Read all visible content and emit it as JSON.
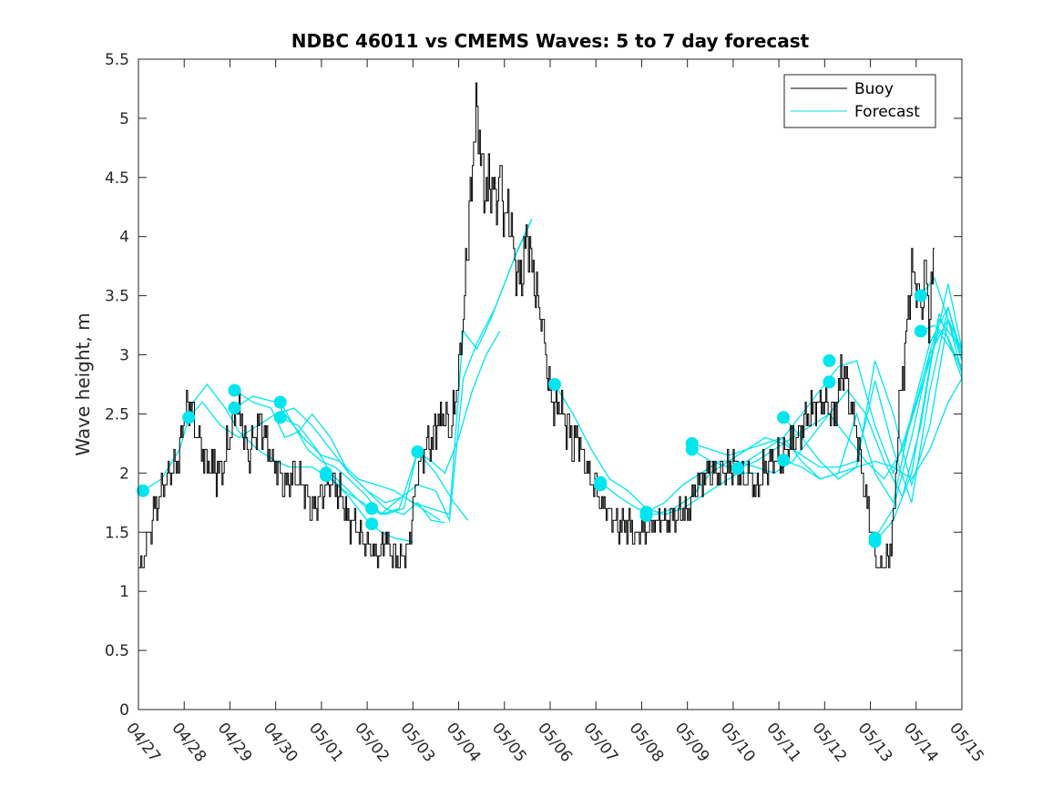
{
  "chart_data": {
    "type": "line",
    "title": "NDBC 46011 vs CMEMS Waves: 5 to 7 day forecast",
    "xlabel": "",
    "ylabel": "Wave height, m",
    "x_unit": "day",
    "xlim": [
      0,
      18
    ],
    "ylim": [
      0,
      5.5
    ],
    "yticks": [
      0,
      0.5,
      1,
      1.5,
      2,
      2.5,
      3,
      3.5,
      4,
      4.5,
      5,
      5.5
    ],
    "yticklabels": [
      "0",
      "0.5",
      "1",
      "1.5",
      "2",
      "2.5",
      "3",
      "3.5",
      "4",
      "4.5",
      "5",
      "5.5"
    ],
    "xtick_labels": [
      "04/27",
      "04/28",
      "04/29",
      "04/30",
      "05/01",
      "05/02",
      "05/03",
      "05/04",
      "05/05",
      "05/06",
      "05/07",
      "05/08",
      "05/09",
      "05/10",
      "05/11",
      "05/12",
      "05/13",
      "05/14",
      "05/15"
    ],
    "grid": false,
    "legend_position": "top-right",
    "legend": [
      "Buoy",
      "Forecast"
    ],
    "colors": {
      "buoy": "#000000",
      "forecast": "#00e5ee",
      "marker": "#00e5ee"
    },
    "buoy": {
      "name": "Buoy",
      "x": [
        0,
        0.1,
        0.3,
        0.5,
        0.7,
        0.8,
        0.9,
        1.0,
        1.1,
        1.2,
        1.3,
        1.5,
        1.7,
        1.8,
        2.0,
        2.1,
        2.3,
        2.4,
        2.5,
        2.7,
        2.9,
        3.1,
        3.2,
        3.4,
        3.6,
        3.8,
        3.9,
        4.0,
        4.2,
        4.4,
        4.6,
        4.8,
        5.0,
        5.2,
        5.3,
        5.4,
        5.6,
        5.7,
        5.9,
        6.0,
        6.1,
        6.3,
        6.4,
        6.5,
        6.7,
        6.8,
        6.9,
        7.0,
        7.1,
        7.15,
        7.2,
        7.25,
        7.3,
        7.4,
        7.5,
        7.6,
        7.7,
        7.8,
        7.9,
        8.0,
        8.1,
        8.2,
        8.3,
        8.4,
        8.5,
        8.6,
        8.7,
        8.8,
        8.9,
        9.0,
        9.1,
        9.2,
        9.4,
        9.5,
        9.6,
        9.8,
        10.0,
        10.2,
        10.4,
        10.5,
        10.7,
        10.9,
        11.0,
        11.2,
        11.5,
        11.8,
        12.0,
        12.2,
        12.5,
        12.8,
        13.0,
        13.2,
        13.5,
        13.8,
        14.0,
        14.2,
        14.4,
        14.6,
        14.8,
        15.0,
        15.2,
        15.4,
        15.5,
        15.7,
        15.9,
        16.1,
        16.2,
        16.4,
        16.5,
        16.6,
        16.8,
        16.9,
        17.0,
        17.1,
        17.2,
        17.3,
        17.4
      ],
      "y": [
        1.15,
        1.3,
        1.6,
        1.9,
        2.0,
        2.1,
        2.2,
        2.5,
        2.6,
        2.5,
        2.3,
        2.1,
        2.0,
        2.0,
        2.3,
        2.6,
        2.35,
        2.1,
        2.3,
        2.4,
        2.1,
        2.0,
        1.9,
        2.0,
        1.85,
        1.65,
        1.7,
        1.85,
        1.9,
        1.85,
        1.6,
        1.5,
        1.4,
        1.3,
        1.35,
        1.4,
        1.3,
        1.25,
        1.4,
        1.7,
        2.0,
        2.3,
        2.2,
        2.4,
        2.5,
        2.3,
        2.6,
        2.9,
        3.3,
        3.8,
        4.0,
        4.3,
        4.7,
        5.1,
        4.6,
        4.3,
        4.5,
        4.3,
        4.6,
        4.1,
        4.2,
        3.9,
        3.6,
        3.7,
        4.0,
        3.8,
        3.5,
        3.3,
        3.0,
        2.7,
        2.5,
        2.55,
        2.4,
        2.2,
        2.3,
        2.0,
        1.85,
        1.7,
        1.6,
        1.55,
        1.55,
        1.5,
        1.5,
        1.55,
        1.6,
        1.65,
        1.7,
        1.9,
        2.0,
        2.0,
        2.05,
        2.0,
        1.9,
        2.1,
        2.1,
        2.2,
        2.3,
        2.5,
        2.55,
        2.6,
        2.5,
        2.9,
        2.7,
        2.3,
        1.8,
        1.3,
        1.2,
        1.3,
        1.6,
        2.4,
        3.3,
        3.7,
        3.6,
        3.4,
        3.7,
        3.3,
        3.9
      ]
    },
    "forecast_series": [
      {
        "x": [
          0.1,
          0.5,
          0.9,
          1.2,
          1.5,
          1.9,
          2.2,
          2.6,
          3.0,
          3.3,
          3.8,
          4.2,
          4.6,
          5.0,
          5.3,
          5.6,
          6.0
        ],
        "y": [
          1.85,
          1.95,
          2.2,
          2.6,
          2.75,
          2.55,
          2.35,
          2.2,
          2.1,
          2.05,
          2.05,
          1.95,
          1.8,
          1.6,
          1.5,
          1.45,
          1.42
        ]
      },
      {
        "x": [
          1.1,
          1.4,
          1.8,
          2.2,
          2.6,
          3.0,
          3.4,
          3.8,
          4.2,
          4.6,
          5.0,
          5.4,
          5.8,
          6.2,
          6.6
        ],
        "y": [
          2.47,
          2.6,
          2.4,
          2.3,
          2.4,
          2.5,
          2.55,
          2.4,
          2.2,
          2.0,
          1.85,
          1.75,
          1.8,
          1.7,
          1.6
        ]
      },
      {
        "x": [
          2.1,
          2.5,
          2.9,
          3.2,
          3.5,
          3.8,
          4.2,
          4.6,
          5.0,
          5.4,
          5.8,
          6.1,
          6.4,
          6.7
        ],
        "y": [
          2.7,
          2.6,
          2.55,
          2.3,
          2.35,
          2.5,
          2.3,
          2.0,
          1.85,
          1.7,
          1.65,
          1.75,
          1.6,
          1.58
        ]
      },
      {
        "x": [
          2.1,
          2.5,
          3.0,
          3.3,
          3.6,
          4.0,
          4.4,
          4.8,
          5.2,
          5.6,
          6.0,
          6.4,
          6.8,
          7.1,
          7.4,
          7.7,
          8.0,
          8.3,
          8.6
        ],
        "y": [
          2.55,
          2.65,
          2.6,
          2.45,
          2.3,
          2.15,
          2.1,
          1.95,
          1.9,
          1.85,
          1.75,
          1.7,
          1.65,
          3.2,
          3.05,
          3.3,
          3.6,
          3.9,
          4.15
        ]
      },
      {
        "x": [
          3.1,
          3.4,
          3.7,
          4.0,
          4.3,
          4.6,
          5.0,
          5.3,
          5.6,
          6.1,
          6.5,
          6.8,
          7.1,
          7.4,
          7.8,
          8.2,
          8.6
        ],
        "y": [
          2.6,
          2.4,
          2.2,
          2.1,
          2.05,
          1.95,
          1.8,
          1.65,
          1.75,
          1.9,
          1.85,
          1.6,
          2.8,
          3.1,
          3.4,
          3.8,
          4.15
        ]
      },
      {
        "x": [
          3.1,
          3.5,
          3.9,
          4.2,
          4.6,
          5.0,
          5.4,
          5.8,
          6.1,
          6.4,
          6.7,
          7.0,
          7.3,
          7.6,
          7.9
        ],
        "y": [
          2.47,
          2.4,
          2.2,
          2.0,
          1.85,
          1.7,
          1.65,
          1.7,
          2.18,
          2.1,
          2.0,
          2.3,
          2.7,
          3.0,
          3.2
        ]
      },
      {
        "x": [
          4.1,
          4.5,
          4.9,
          5.3,
          5.7,
          6.1,
          6.5,
          6.9,
          7.2
        ],
        "y": [
          2.0,
          1.85,
          1.75,
          1.65,
          1.7,
          2.18,
          2.0,
          1.75,
          1.6
        ]
      },
      {
        "x": [
          9.1,
          9.5,
          9.9,
          10.3,
          10.7,
          11.1,
          11.5,
          11.9,
          12.3,
          12.7,
          13.1,
          13.5
        ],
        "y": [
          2.75,
          2.5,
          2.2,
          1.95,
          1.85,
          1.7,
          1.65,
          1.7,
          1.8,
          1.9,
          2.0,
          2.0
        ]
      },
      {
        "x": [
          10.1,
          10.5,
          10.9,
          11.3,
          11.7,
          12.1,
          12.5,
          12.9,
          13.3,
          13.7,
          14.1,
          14.5,
          14.9,
          15.3,
          15.7,
          16.1,
          16.5,
          17.0,
          17.5,
          18.0
        ],
        "y": [
          1.92,
          1.8,
          1.7,
          1.65,
          1.7,
          1.8,
          2.0,
          2.1,
          2.2,
          2.25,
          2.3,
          2.5,
          2.7,
          2.9,
          2.95,
          2.4,
          2.0,
          2.6,
          3.3,
          3.05
        ]
      },
      {
        "x": [
          11.1,
          11.5,
          11.9,
          12.3,
          12.7,
          13.1,
          13.5,
          13.9,
          14.3,
          14.7,
          15.1,
          15.5,
          15.9,
          16.3,
          16.7,
          17.1,
          17.5,
          18.0
        ],
        "y": [
          1.67,
          1.75,
          1.9,
          2.0,
          2.1,
          2.1,
          2.05,
          2.0,
          2.1,
          2.3,
          2.5,
          2.7,
          2.5,
          2.1,
          1.8,
          2.4,
          3.35,
          2.8
        ]
      },
      {
        "x": [
          12.1,
          12.5,
          12.9,
          13.3,
          13.7,
          14.1,
          14.5,
          14.9,
          15.3,
          15.7,
          16.1,
          16.5,
          16.9,
          17.3,
          17.7,
          18.0
        ],
        "y": [
          2.25,
          2.2,
          2.15,
          2.2,
          2.3,
          2.25,
          2.15,
          2.05,
          2.05,
          2.1,
          2.78,
          2.2,
          1.75,
          2.7,
          3.4,
          3.0
        ]
      },
      {
        "x": [
          12.1,
          12.5,
          12.9,
          13.3,
          13.7,
          14.1,
          14.5,
          14.9,
          15.3,
          15.7,
          16.1,
          16.5,
          16.9,
          17.3,
          17.7,
          18.0
        ],
        "y": [
          2.2,
          2.1,
          2.05,
          2.1,
          2.2,
          2.3,
          2.1,
          1.95,
          2.0,
          2.05,
          2.95,
          2.5,
          1.9,
          2.4,
          3.3,
          2.85
        ]
      },
      {
        "x": [
          13.1,
          13.5,
          13.9,
          14.3,
          14.7,
          15.1,
          15.5,
          15.9,
          16.3,
          16.7,
          17.1,
          17.5,
          18.0
        ],
        "y": [
          2.04,
          2.1,
          2.2,
          2.3,
          2.4,
          2.5,
          2.3,
          2.1,
          1.95,
          2.2,
          2.7,
          3.2,
          2.9
        ]
      },
      {
        "x": [
          14.1,
          14.5,
          14.9,
          15.3,
          15.7,
          16.1,
          16.5,
          16.9,
          17.3,
          17.7,
          18.0
        ],
        "y": [
          2.47,
          2.3,
          2.1,
          1.95,
          2.05,
          2.1,
          2.05,
          1.95,
          2.2,
          2.6,
          2.8
        ]
      },
      {
        "x": [
          14.1,
          14.5,
          14.9,
          15.3,
          15.7,
          16.1,
          16.5,
          16.9,
          17.3,
          17.7,
          18.0
        ],
        "y": [
          2.11,
          2.05,
          1.95,
          2.0,
          2.5,
          2.0,
          1.75,
          2.5,
          3.1,
          3.4,
          2.95
        ]
      },
      {
        "x": [
          16.1,
          16.5,
          16.9,
          17.3,
          17.7,
          18.0
        ],
        "y": [
          1.45,
          1.7,
          2.3,
          3.0,
          3.3,
          3.05
        ]
      },
      {
        "x": [
          16.1,
          16.5,
          16.9,
          17.3,
          17.7,
          18.0
        ],
        "y": [
          1.42,
          1.6,
          2.0,
          2.9,
          3.6,
          3.05
        ]
      },
      {
        "x": [
          17.1,
          17.4,
          17.7,
          18.0
        ],
        "y": [
          3.5,
          3.65,
          3.3,
          2.95
        ]
      },
      {
        "x": [
          17.1,
          17.4,
          17.7,
          18.0
        ],
        "y": [
          3.2,
          3.25,
          3.15,
          2.85
        ]
      }
    ],
    "markers": {
      "x": [
        0.1,
        1.1,
        2.1,
        2.1,
        3.1,
        3.1,
        4.1,
        4.1,
        5.1,
        5.1,
        6.1,
        9.1,
        10.1,
        10.1,
        11.1,
        11.1,
        12.1,
        12.1,
        13.1,
        14.1,
        14.1,
        15.1,
        15.1,
        16.1,
        16.1,
        17.1,
        17.1
      ],
      "y": [
        1.85,
        2.47,
        2.7,
        2.55,
        2.6,
        2.47,
        2.0,
        1.98,
        1.7,
        1.57,
        2.18,
        2.75,
        1.92,
        1.9,
        1.67,
        1.64,
        2.25,
        2.2,
        2.04,
        2.47,
        2.11,
        2.95,
        2.77,
        1.45,
        1.42,
        3.5,
        3.2
      ]
    }
  }
}
